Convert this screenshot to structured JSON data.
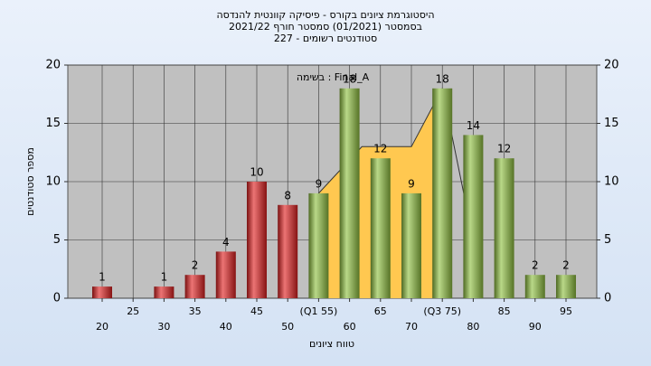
{
  "chart_data": {
    "type": "bar",
    "title": "היסטוגרמת ציונים בקורס - פיסיקה קוונטית להנדסה",
    "subtitle": "בסמסטר  (01/2021)  סמסטר חורף  2021/22",
    "subtitle2": "סטודנטים רשומים - 227",
    "annotation": "בשימה : Final_A",
    "x_label": "טווח ציונים",
    "y_label": "מספר סטודנטים",
    "categories": [
      "20",
      "25",
      "30",
      "35",
      "40",
      "45",
      "50",
      "(Q1 55)",
      "60",
      "65",
      "70",
      "(Q3 75)",
      "80",
      "85",
      "90",
      "95"
    ],
    "values": [
      1,
      0,
      1,
      2,
      4,
      10,
      8,
      9,
      18,
      12,
      9,
      18,
      14,
      12,
      2,
      2
    ],
    "colors": [
      "#e02020",
      "#e02020",
      "#e02020",
      "#e02020",
      "#e02020",
      "#e02020",
      "#e02020",
      "#8fc040",
      "#8fc040",
      "#8fc040",
      "#8fc040",
      "#8fc040",
      "#8fc040",
      "#8fc040",
      "#8fc040",
      "#8fc040"
    ],
    "area": {
      "color": "#ffc850",
      "x": [
        55,
        62,
        70,
        75,
        80
      ],
      "values": [
        9,
        13,
        13,
        18,
        5
      ]
    },
    "ylim": [
      0,
      20
    ],
    "yticks": [
      0,
      5,
      10,
      15,
      20
    ],
    "y2lim": [
      0,
      20
    ],
    "y2ticks": [
      0,
      5,
      10,
      15,
      20
    ],
    "grid": true
  }
}
